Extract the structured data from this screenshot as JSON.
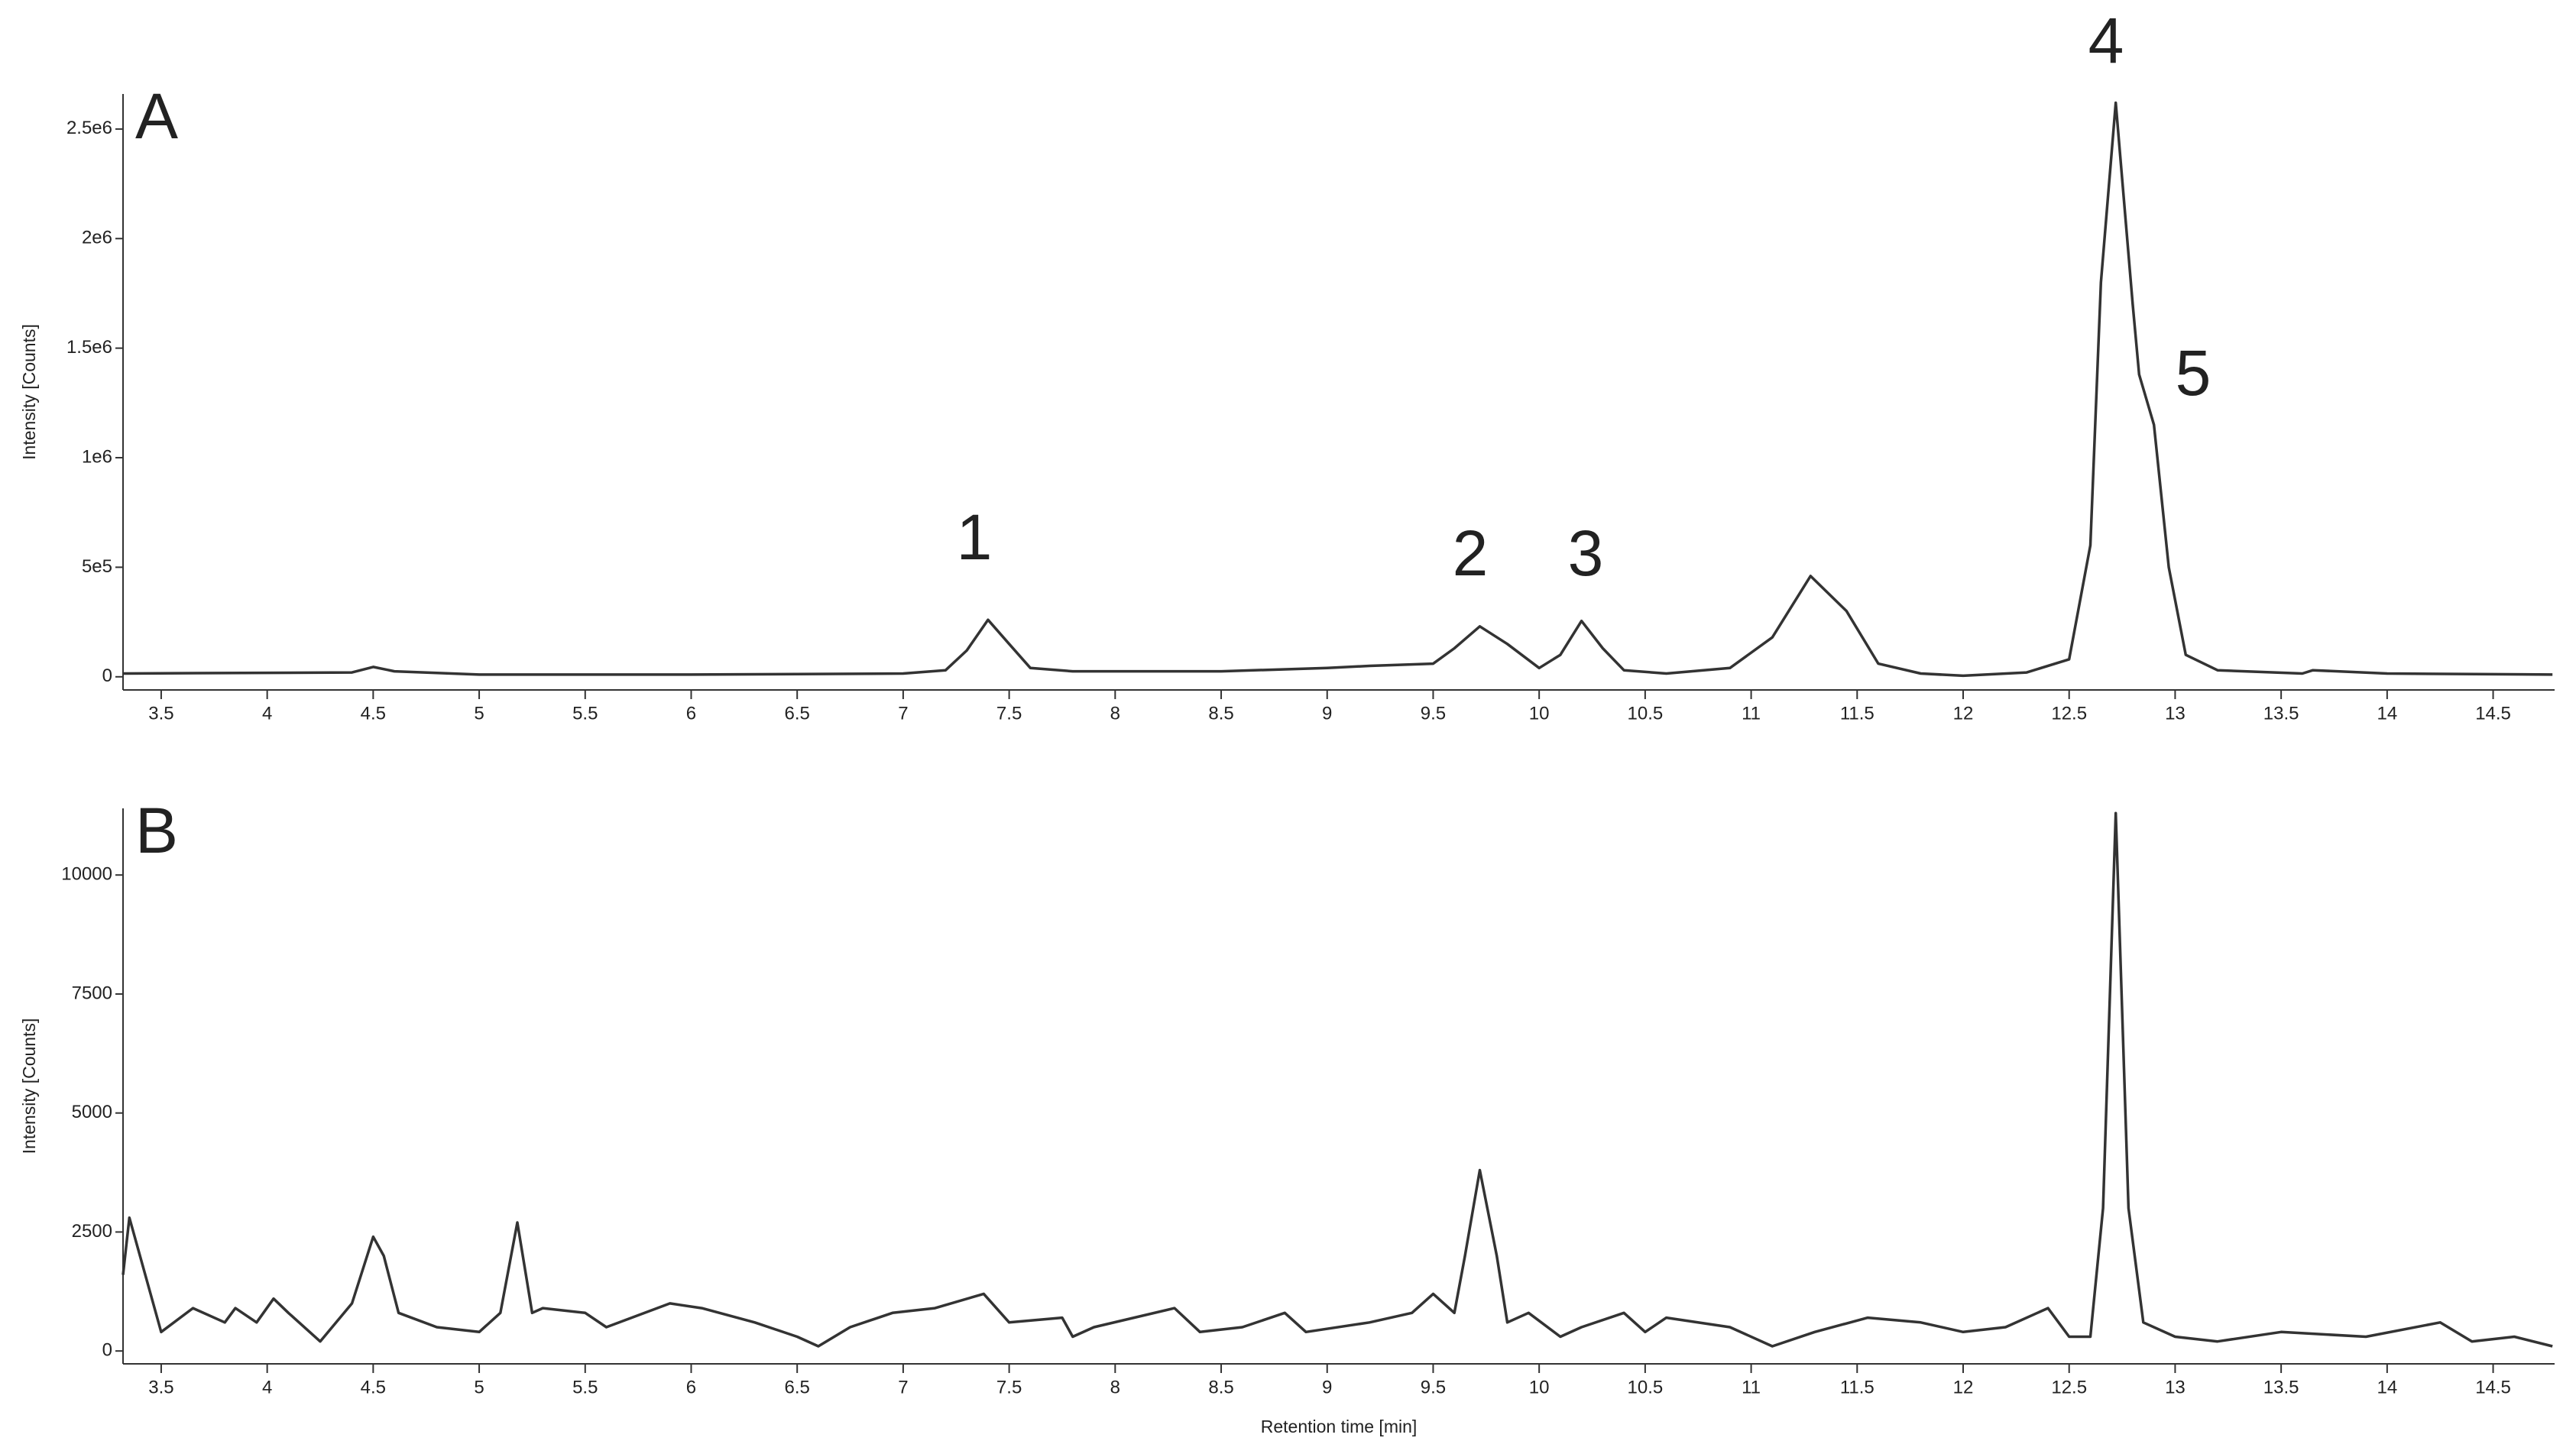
{
  "chart_data": [
    {
      "type": "line",
      "panel_label": "A",
      "y_label": "Intensity [Counts]",
      "color": "#333333",
      "peak_labels": [
        "1",
        "2",
        "3",
        "4",
        "5"
      ],
      "xlim": [
        3.32,
        14.79
      ],
      "ylim": [
        -60000,
        2660000
      ],
      "xticks": [
        3.5,
        4,
        4.5,
        5,
        5.5,
        6,
        6.5,
        7,
        7.5,
        8,
        8.5,
        9,
        9.5,
        10,
        10.5,
        11,
        11.5,
        12,
        12.5,
        13,
        13.5,
        14,
        14.5
      ],
      "yticks": [
        0,
        {
          "value": 500000,
          "label": "5e5"
        },
        {
          "value": 1000000,
          "label": "1e6"
        },
        {
          "value": 1500000,
          "label": "1.5e6"
        },
        {
          "value": 2000000,
          "label": "2e6"
        },
        {
          "value": 2500000,
          "label": "2.5e6"
        }
      ],
      "x": [
        3.32,
        4.0,
        4.4,
        4.5,
        4.6,
        5.0,
        6.0,
        7.0,
        7.2,
        7.3,
        7.4,
        7.5,
        7.6,
        7.8,
        8.5,
        9.0,
        9.2,
        9.5,
        9.6,
        9.72,
        9.85,
        10.0,
        10.1,
        10.2,
        10.3,
        10.4,
        10.6,
        10.9,
        11.1,
        11.28,
        11.45,
        11.6,
        11.8,
        12.0,
        12.3,
        12.5,
        12.6,
        12.65,
        12.72,
        12.8,
        12.83,
        12.9,
        12.97,
        13.05,
        13.2,
        13.6,
        13.65,
        14.0,
        14.78
      ],
      "values": [
        15000,
        18000,
        20000,
        45000,
        25000,
        10000,
        10000,
        15000,
        30000,
        120000,
        260000,
        150000,
        40000,
        25000,
        25000,
        40000,
        50000,
        60000,
        130000,
        230000,
        150000,
        40000,
        100000,
        255000,
        130000,
        30000,
        15000,
        40000,
        180000,
        460000,
        300000,
        60000,
        15000,
        5000,
        20000,
        80000,
        600000,
        1800000,
        2620000,
        1700000,
        1380000,
        1150000,
        500000,
        100000,
        30000,
        15000,
        30000,
        15000,
        10000
      ]
    },
    {
      "type": "line",
      "panel_label": "B",
      "y_label": "Intensity [Counts]",
      "x_label": "Retention time [min]",
      "color": "#333333",
      "xlim": [
        3.32,
        14.79
      ],
      "ylim": [
        -270,
        11400
      ],
      "xticks": [
        3.5,
        4,
        4.5,
        5,
        5.5,
        6,
        6.5,
        7,
        7.5,
        8,
        8.5,
        9,
        9.5,
        10,
        10.5,
        11,
        11.5,
        12,
        12.5,
        13,
        13.5,
        14,
        14.5
      ],
      "yticks": [
        0,
        2500,
        5000,
        7500,
        10000
      ],
      "x": [
        3.32,
        3.35,
        3.5,
        3.65,
        3.8,
        3.85,
        3.95,
        4.03,
        4.1,
        4.25,
        4.4,
        4.5,
        4.55,
        4.62,
        4.8,
        5.0,
        5.1,
        5.18,
        5.25,
        5.3,
        5.5,
        5.6,
        5.9,
        6.05,
        6.3,
        6.5,
        6.6,
        6.75,
        6.95,
        7.15,
        7.38,
        7.5,
        7.75,
        7.8,
        7.9,
        8.28,
        8.4,
        8.6,
        8.8,
        8.9,
        9.2,
        9.4,
        9.5,
        9.6,
        9.65,
        9.72,
        9.8,
        9.85,
        9.95,
        10.1,
        10.2,
        10.4,
        10.5,
        10.6,
        10.9,
        11.1,
        11.3,
        11.55,
        11.8,
        12.0,
        12.2,
        12.4,
        12.5,
        12.6,
        12.66,
        12.72,
        12.78,
        12.85,
        13.0,
        13.2,
        13.5,
        13.9,
        14.25,
        14.4,
        14.6,
        14.78
      ],
      "values": [
        1600,
        2800,
        400,
        900,
        600,
        900,
        600,
        1100,
        800,
        200,
        1000,
        2400,
        2000,
        800,
        500,
        400,
        800,
        2700,
        800,
        900,
        800,
        500,
        1000,
        900,
        600,
        300,
        100,
        500,
        800,
        900,
        1200,
        600,
        700,
        300,
        500,
        900,
        400,
        500,
        800,
        400,
        600,
        800,
        1200,
        800,
        2000,
        3800,
        2000,
        600,
        800,
        300,
        500,
        800,
        400,
        700,
        500,
        100,
        400,
        700,
        600,
        400,
        500,
        900,
        300,
        300,
        3000,
        11300,
        3000,
        600,
        300,
        200,
        400,
        300,
        600,
        200,
        300,
        100
      ]
    }
  ]
}
